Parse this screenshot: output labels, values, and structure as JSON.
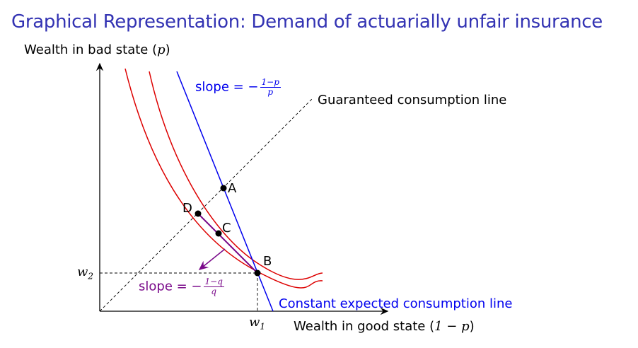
{
  "title": "Graphical Representation: Demand of actuarially unfair insurance",
  "axes": {
    "y_label_text": "Wealth in bad state (",
    "y_label_var": "p",
    "y_label_close": ")",
    "x_label_text": "Wealth in good state (",
    "x_label_var": "1 − p",
    "x_label_close": ")"
  },
  "ticks": {
    "w2": "w",
    "w2_sub": "2",
    "w1": "w",
    "w1_sub": "1"
  },
  "lines": {
    "guaranteed": "Guaranteed consumption line",
    "constant_expected": "Constant expected consumption line"
  },
  "slope_blue": {
    "prefix": "slope = −",
    "num": "1−p",
    "den": "p"
  },
  "slope_purple": {
    "prefix": "slope = −",
    "num": "1−q",
    "den": "q"
  },
  "points": {
    "A": "A",
    "B": "B",
    "C": "C",
    "D": "D"
  },
  "colors": {
    "title": "#3333b3",
    "indifference_curves": "#dd0000",
    "budget_fair": "#0000ee",
    "budget_unfair": "#7a0a8a"
  }
}
